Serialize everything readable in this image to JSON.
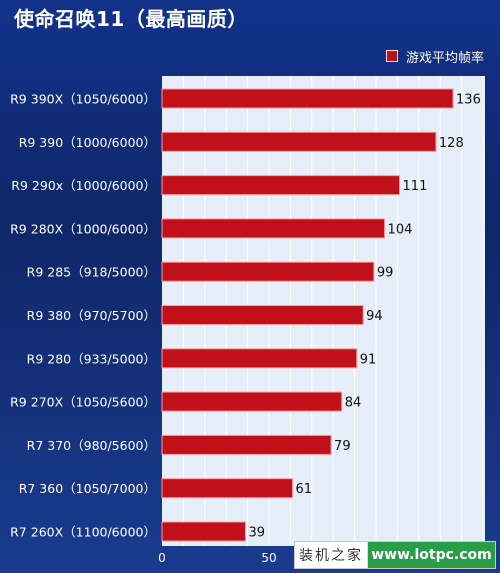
{
  "chart_data": {
    "type": "bar",
    "orientation": "horizontal",
    "title": "使命召唤11（最高画质）",
    "categories": [
      "R9 390X（1050/6000）",
      "R9 390（1000/6000）",
      "R9 290x（1000/6000）",
      "R9 280X（1000/6000）",
      "R9 285（918/5000）",
      "R9 380（970/5700）",
      "R9 280（933/5000）",
      "R9 270X（1050/5600）",
      "R7 370（980/5600）",
      "R7 360（1050/7000）",
      "R7 260X（1100/6000）"
    ],
    "series": [
      {
        "name": "游戏平均帧率",
        "values": [
          136,
          128,
          111,
          104,
          99,
          94,
          91,
          84,
          79,
          61,
          39
        ]
      }
    ],
    "xlim": [
      0,
      150
    ],
    "xticks": [
      "0",
      "50"
    ],
    "legend_position": "top-right",
    "colors": {
      "bar": "#c0101a",
      "bar_border": "#ff9a9a",
      "plot_bg": "#e6eef9",
      "grid": "#ffffff"
    }
  },
  "watermark": {
    "left": "装机之家",
    "right": "www.lotpc.com"
  }
}
